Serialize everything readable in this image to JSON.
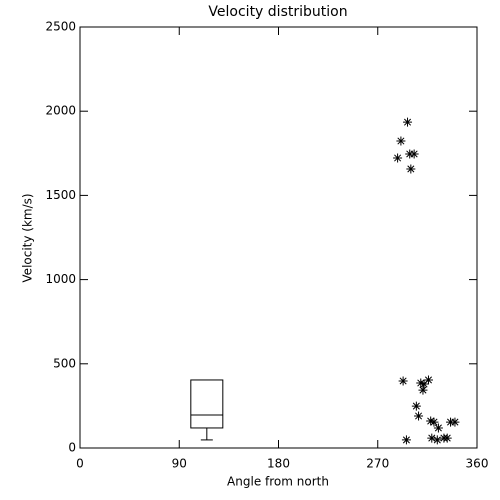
{
  "chart_data": {
    "type": "scatter",
    "title": "Velocity distribution",
    "x_label": "Angle from north",
    "y_label": "Velocity (km/s)",
    "xlim": [
      0,
      360
    ],
    "ylim": [
      0,
      2500
    ],
    "xticks": [
      0,
      90,
      180,
      270,
      360
    ],
    "yticks": [
      0,
      500,
      1000,
      1500,
      2000,
      2500
    ],
    "color": "#000000",
    "x": [
      297,
      291,
      288,
      299,
      303,
      300,
      293,
      296,
      305,
      307,
      309,
      312,
      316,
      311,
      318,
      321,
      319,
      325,
      324,
      330,
      333,
      336,
      340
    ],
    "values": [
      1935,
      1823,
      1722,
      1746,
      1746,
      1657,
      398,
      48,
      249,
      190,
      386,
      380,
      404,
      344,
      160,
      154,
      59,
      119,
      48,
      59,
      59,
      154,
      154
    ],
    "box": {
      "x": 115,
      "min": 48,
      "q1": 119,
      "median": 196,
      "q3": 404,
      "max": 404
    }
  }
}
